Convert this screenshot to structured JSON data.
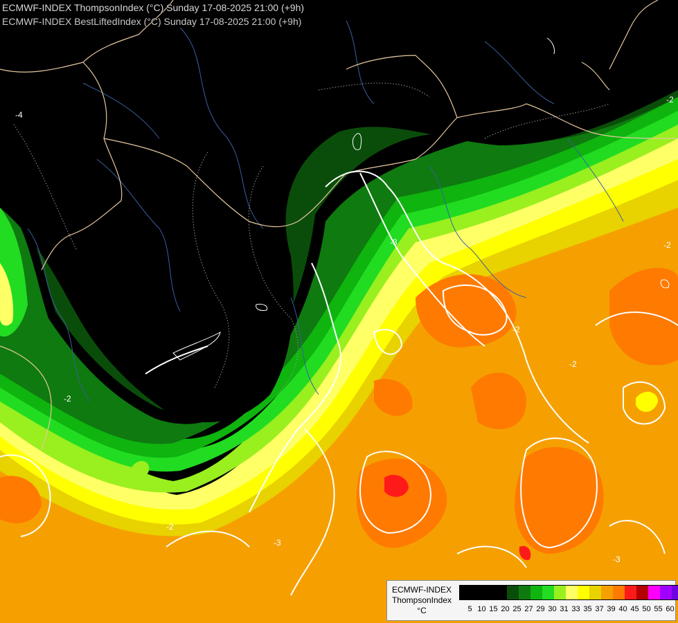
{
  "header": {
    "line1": "ECMWF-INDEX ThompsonIndex (°C) Sunday 17-08-2025 21:00 (+9h)",
    "line2": "ECMWF-INDEX BestLiftedIndex (°C) Sunday 17-08-2025 21:00 (+9h)"
  },
  "contour_labels": [
    "-2",
    "-2",
    "-2",
    "-2",
    "-2",
    "-2",
    "-3",
    "-3",
    "-3",
    "-4"
  ],
  "legend": {
    "line1": "ECMWF-INDEX",
    "line2": "ThompsonIndex",
    "line3": "°C",
    "ticks": [
      "5",
      "10",
      "15",
      "20",
      "25",
      "27",
      "29",
      "30",
      "31",
      "33",
      "35",
      "37",
      "39",
      "40",
      "45",
      "50",
      "55",
      "60"
    ],
    "colors": [
      "#000000",
      "#000000",
      "#000000",
      "#000000",
      "#0a4d0a",
      "#0f7a0f",
      "#0fb40f",
      "#22dc22",
      "#9aef1e",
      "#ffff66",
      "#ffff00",
      "#e8d200",
      "#f5a000",
      "#ff7a00",
      "#ff1a1a",
      "#b40000",
      "#ff00ff",
      "#a000ff",
      "#7000e0",
      "#0000ff"
    ]
  },
  "colors": {
    "background": "#000000",
    "border": "#e6c8a0",
    "river": "#3a5f9f",
    "isoline": "#ffffff"
  }
}
